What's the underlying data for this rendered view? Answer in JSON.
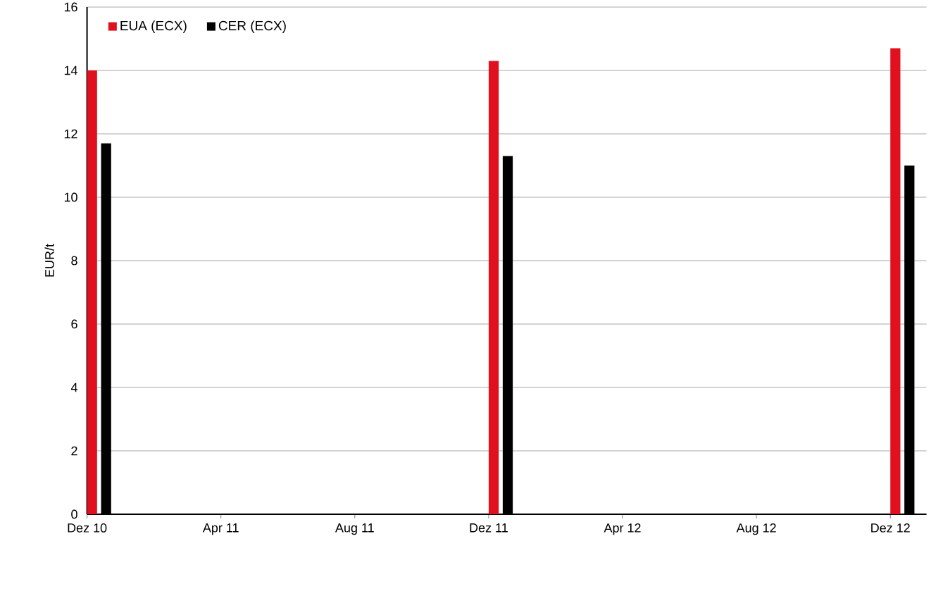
{
  "chart_data": {
    "type": "bar",
    "ylabel": "EUR/t",
    "categories": [
      "Dez 10",
      "Apr 11",
      "Aug 11",
      "Dez 11",
      "Apr 12",
      "Aug 12",
      "Dez 12"
    ],
    "series": [
      {
        "name": "EUA (ECX)",
        "color": "#e0101f",
        "values": [
          14.0,
          null,
          null,
          14.3,
          null,
          null,
          14.7
        ]
      },
      {
        "name": "CER (ECX)",
        "color": "#000000",
        "values": [
          11.7,
          null,
          null,
          11.3,
          null,
          null,
          11.0
        ]
      }
    ],
    "ylim": [
      0,
      16
    ],
    "yticks": [
      0,
      2,
      4,
      6,
      8,
      10,
      12,
      14,
      16
    ],
    "grid": "y",
    "legend": "top left"
  }
}
